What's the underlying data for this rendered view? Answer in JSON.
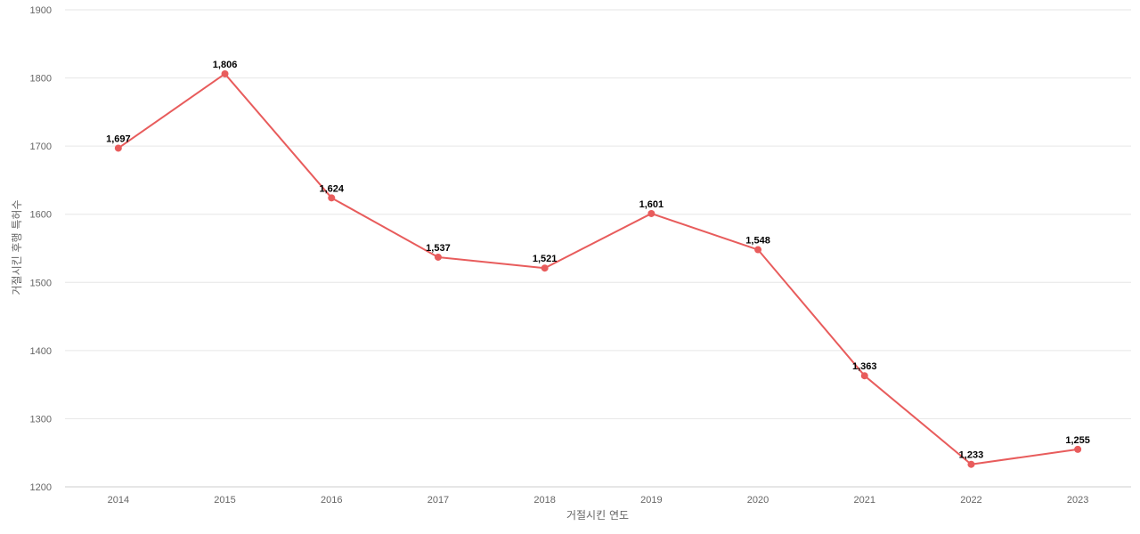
{
  "chart_data": {
    "type": "line",
    "xlabel": "거절시킨 연도",
    "ylabel": "거절시킨 후행 특허수",
    "ylim": [
      1200,
      1900
    ],
    "yticks": [
      1200,
      1300,
      1400,
      1500,
      1600,
      1700,
      1800,
      1900
    ],
    "grid": true,
    "legend": "none",
    "x": [
      "2014",
      "2015",
      "2016",
      "2017",
      "2018",
      "2019",
      "2020",
      "2021",
      "2022",
      "2023"
    ],
    "series": [
      {
        "color": "#e85c5c",
        "values": [
          1697,
          1806,
          1624,
          1537,
          1521,
          1601,
          1548,
          1363,
          1233,
          1255
        ],
        "labels": [
          "1,697",
          "1,806",
          "1,624",
          "1,537",
          "1,521",
          "1,601",
          "1,548",
          "1,363",
          "1,233",
          "1,255"
        ]
      }
    ]
  }
}
